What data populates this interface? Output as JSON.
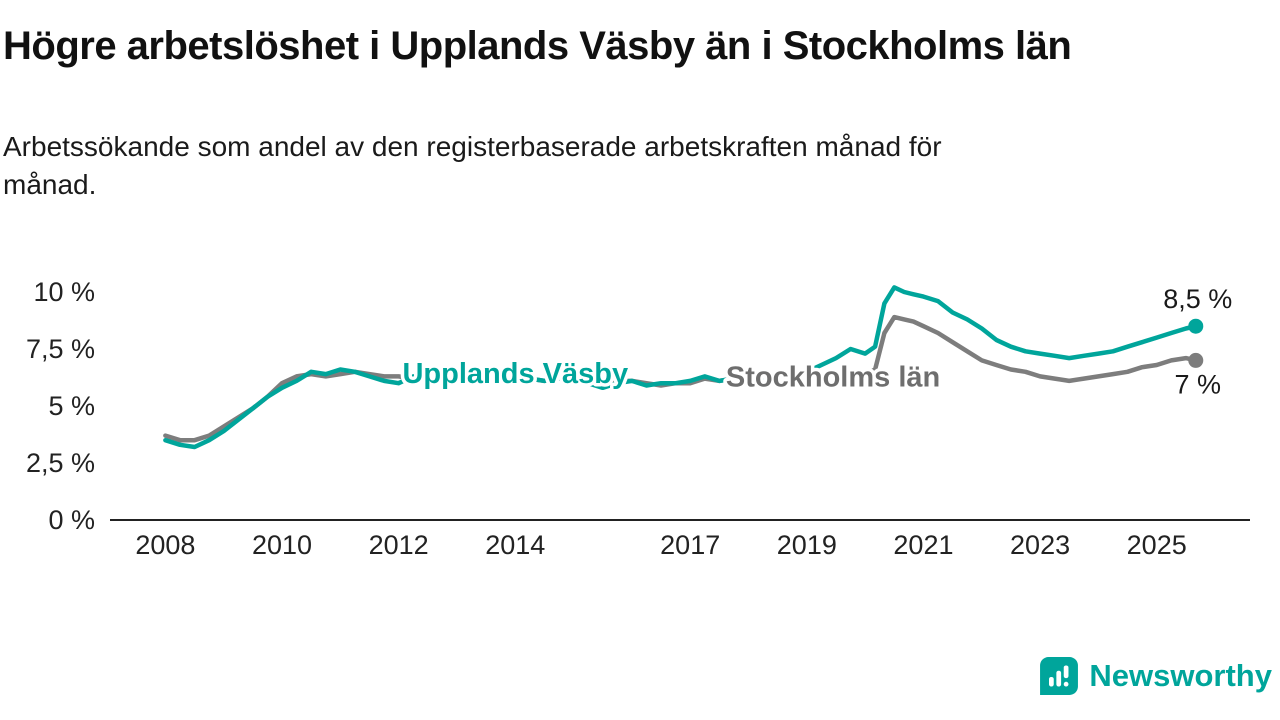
{
  "page": {
    "background": "#ffffff"
  },
  "footer": {
    "brand": "Newsworthy",
    "brand_color": "#00a59b",
    "logo_icon": "bar-chart-speech-bubble"
  },
  "chart_data": {
    "type": "line",
    "title": "Högre arbetslöshet i Upplands Väsby än i Stockholms län",
    "subtitle": "Arbetssökande som andel av den registerbaserade arbetskraften månad för\nmånad.",
    "grid": false,
    "legend": "inline-labels",
    "xlim": [
      2007.05,
      2026.6
    ],
    "ylim": [
      0,
      10
    ],
    "axis_color": "#222222",
    "yticks": [
      {
        "value": 0,
        "label": "0 %"
      },
      {
        "value": 2.5,
        "label": "2,5 %"
      },
      {
        "value": 5,
        "label": "5 %"
      },
      {
        "value": 7.5,
        "label": "7,5 %"
      },
      {
        "value": 10,
        "label": "10 %"
      }
    ],
    "xticks": [
      2008,
      2010,
      2012,
      2014,
      2017,
      2019,
      2021,
      2023,
      2025
    ],
    "x": [
      2008,
      2008.25,
      2008.5,
      2008.75,
      2009,
      2009.25,
      2009.5,
      2009.75,
      2010,
      2010.25,
      2010.5,
      2010.75,
      2011,
      2011.25,
      2011.5,
      2011.75,
      2012,
      2012.25,
      2012.5,
      2012.75,
      2013,
      2013.25,
      2013.5,
      2013.75,
      2014,
      2014.25,
      2014.5,
      2014.75,
      2015,
      2015.25,
      2015.5,
      2015.75,
      2016,
      2016.25,
      2016.5,
      2016.75,
      2017,
      2017.25,
      2017.5,
      2017.75,
      2018,
      2018.25,
      2018.5,
      2018.75,
      2019,
      2019.25,
      2019.5,
      2019.75,
      2020,
      2020.17,
      2020.33,
      2020.5,
      2020.67,
      2020.83,
      2021,
      2021.25,
      2021.5,
      2021.75,
      2022,
      2022.25,
      2022.5,
      2022.75,
      2023,
      2023.25,
      2023.5,
      2023.75,
      2024,
      2024.25,
      2024.5,
      2024.75,
      2025,
      2025.25,
      2025.5,
      2025.67
    ],
    "series": [
      {
        "name": "Upplands Väsby",
        "color": "#00a59b",
        "label_color": "#00a59b",
        "end_label": "8,5 %",
        "end_label_dy": -18,
        "label_x": 2014.0,
        "label_y": 6.0,
        "values": [
          3.5,
          3.3,
          3.2,
          3.5,
          3.9,
          4.4,
          4.9,
          5.4,
          5.8,
          6.1,
          6.5,
          6.4,
          6.6,
          6.5,
          6.3,
          6.1,
          6.0,
          6.3,
          6.1,
          6.3,
          6.4,
          6.2,
          6.3,
          6.4,
          6.3,
          6.2,
          6.1,
          6.2,
          6.2,
          6.0,
          5.8,
          6.0,
          6.1,
          5.9,
          6.0,
          6.0,
          6.1,
          6.3,
          6.1,
          6.2,
          6.3,
          6.2,
          6.3,
          6.4,
          6.5,
          6.8,
          7.1,
          7.5,
          7.3,
          7.6,
          9.5,
          10.2,
          10.0,
          9.9,
          9.8,
          9.6,
          9.1,
          8.8,
          8.4,
          7.9,
          7.6,
          7.4,
          7.3,
          7.2,
          7.1,
          7.2,
          7.3,
          7.4,
          7.6,
          7.8,
          8.0,
          8.2,
          8.4,
          8.5
        ]
      },
      {
        "name": "Stockholms län",
        "color": "#7d7d7d",
        "label_color": "#6e6e6e",
        "end_label": "7 %",
        "end_label_dy": 33,
        "label_x": 2019.45,
        "label_y": 5.85,
        "values": [
          3.7,
          3.5,
          3.5,
          3.7,
          4.1,
          4.5,
          4.9,
          5.4,
          6.0,
          6.3,
          6.4,
          6.3,
          6.4,
          6.5,
          6.4,
          6.3,
          6.3,
          6.2,
          6.3,
          6.4,
          6.4,
          6.3,
          6.2,
          6.3,
          6.3,
          6.2,
          6.1,
          6.2,
          6.2,
          6.1,
          6.0,
          6.1,
          6.1,
          6.0,
          5.9,
          6.0,
          6.0,
          6.2,
          6.1,
          6.2,
          6.2,
          6.1,
          6.2,
          6.3,
          6.3,
          6.4,
          6.4,
          6.5,
          6.4,
          6.6,
          8.2,
          8.9,
          8.8,
          8.7,
          8.5,
          8.2,
          7.8,
          7.4,
          7.0,
          6.8,
          6.6,
          6.5,
          6.3,
          6.2,
          6.1,
          6.2,
          6.3,
          6.4,
          6.5,
          6.7,
          6.8,
          7.0,
          7.1,
          7.0
        ]
      }
    ]
  }
}
